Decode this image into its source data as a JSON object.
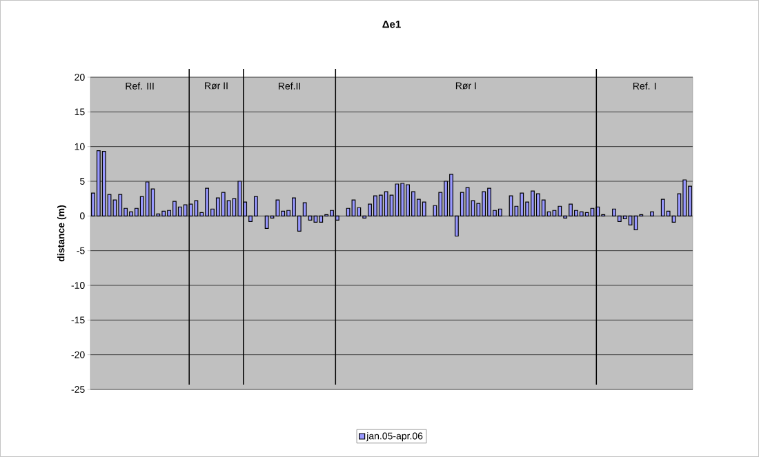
{
  "chart_data": {
    "type": "bar",
    "title": "Δe1",
    "ylabel": "distance (m)",
    "categories": [
      null,
      null,
      null,
      null,
      null,
      null,
      null,
      null,
      null,
      null,
      null,
      null,
      null,
      null,
      null,
      null,
      null,
      null,
      null,
      null,
      null,
      null,
      null,
      null,
      null,
      null,
      null,
      null,
      null,
      null,
      null,
      null,
      null,
      null,
      null,
      null,
      null,
      null,
      null,
      null,
      null,
      null,
      null,
      null,
      null,
      null,
      null,
      null,
      null,
      null,
      null,
      null,
      null,
      null,
      null,
      null,
      null,
      null,
      null,
      null,
      null,
      null,
      null,
      null,
      null,
      null,
      null,
      null,
      null,
      null,
      null,
      null,
      null,
      null,
      null,
      null,
      null,
      null,
      null,
      null,
      null,
      null,
      null,
      null,
      null,
      null,
      null,
      null,
      null,
      null,
      null,
      null,
      null,
      null,
      null,
      null,
      null,
      null,
      null,
      null,
      null,
      null,
      null,
      null,
      null,
      null,
      null,
      null,
      null,
      null,
      null
    ],
    "series": [
      {
        "name": "jan.05-apr.06",
        "color": "#9999ff",
        "values": [
          3.3,
          9.4,
          9.3,
          3.1,
          2.3,
          3.1,
          1.1,
          0.6,
          1.1,
          2.8,
          4.9,
          3.9,
          0.3,
          0.7,
          0.8,
          2.1,
          1.3,
          1.6,
          1.7,
          2.2,
          0.5,
          4.0,
          1.0,
          2.6,
          3.4,
          2.2,
          2.5,
          5.0,
          2.0,
          -0.8,
          2.8,
          null,
          -1.8,
          -0.3,
          2.3,
          0.7,
          0.8,
          2.6,
          -2.2,
          1.9,
          -0.6,
          -0.9,
          -0.9,
          0.2,
          0.8,
          -0.6,
          null,
          1.1,
          2.3,
          1.2,
          -0.3,
          1.7,
          2.9,
          3.0,
          3.5,
          3.0,
          4.6,
          4.7,
          4.5,
          3.5,
          2.4,
          2.0,
          null,
          1.5,
          3.4,
          5.0,
          6.0,
          -2.9,
          3.4,
          4.1,
          2.2,
          1.8,
          3.5,
          4.0,
          0.8,
          1.0,
          null,
          2.9,
          1.4,
          3.3,
          2.0,
          3.6,
          3.2,
          2.3,
          0.6,
          0.8,
          1.4,
          -0.3,
          1.7,
          0.8,
          0.6,
          0.5,
          1.1,
          1.3,
          0.2,
          null,
          1.0,
          -0.8,
          -0.4,
          -1.3,
          -2.0,
          0.2,
          null,
          0.6,
          null,
          2.4,
          0.7,
          -0.9,
          3.2,
          5.2,
          4.3
        ]
      }
    ],
    "ylim": [
      -25,
      20
    ],
    "yticks": [
      -25,
      -20,
      -15,
      -10,
      -5,
      0,
      5,
      10,
      15,
      20
    ],
    "grid": "y",
    "legend": "bottom",
    "annotations": [
      "Ref. III",
      "Rør II",
      "Ref.II",
      "Rør I",
      "Ref. I"
    ]
  }
}
